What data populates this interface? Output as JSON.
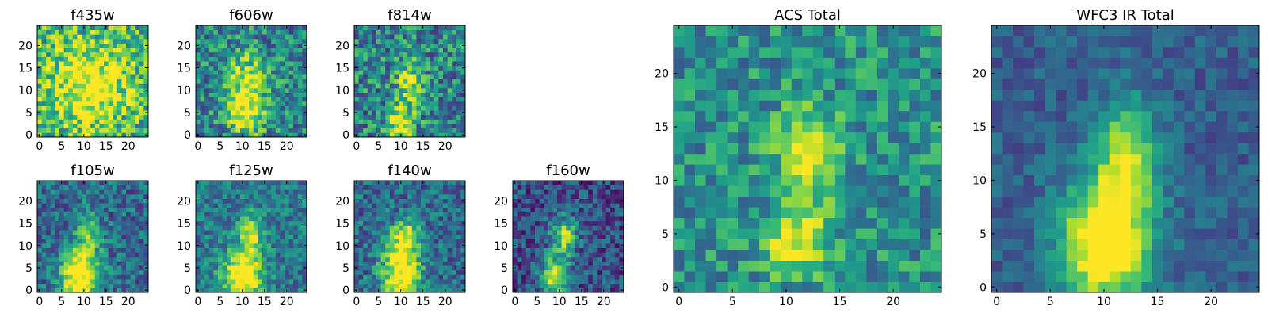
{
  "chart_data": [
    {
      "type": "heatmap",
      "title": "f435w",
      "xlim": [
        0,
        24
      ],
      "ylim": [
        0,
        24
      ],
      "xticks": [
        "0",
        "5",
        "10",
        "15",
        "20"
      ],
      "yticks": [
        "0",
        "5",
        "10",
        "15",
        "20"
      ],
      "colormap": "viridis",
      "blobs": [
        [
          11,
          11,
          0.5,
          7,
          7
        ]
      ],
      "noise": 0.32,
      "base": 0.6,
      "seed": 11
    },
    {
      "type": "heatmap",
      "title": "f606w",
      "xlim": [
        0,
        24
      ],
      "ylim": [
        0,
        24
      ],
      "xticks": [
        "0",
        "5",
        "10",
        "15",
        "20"
      ],
      "yticks": [
        "0",
        "5",
        "10",
        "15",
        "20"
      ],
      "colormap": "viridis",
      "blobs": [
        [
          11,
          11,
          0.55,
          3,
          5
        ],
        [
          11,
          4,
          0.35,
          3,
          3
        ]
      ],
      "noise": 0.28,
      "base": 0.45,
      "seed": 22
    },
    {
      "type": "heatmap",
      "title": "f814w",
      "xlim": [
        0,
        24
      ],
      "ylim": [
        0,
        24
      ],
      "xticks": [
        "0",
        "5",
        "10",
        "15",
        "20"
      ],
      "yticks": [
        "0",
        "5",
        "10",
        "15",
        "20"
      ],
      "colormap": "viridis",
      "blobs": [
        [
          10,
          3,
          0.6,
          2,
          3
        ],
        [
          12,
          12,
          0.45,
          2,
          3
        ]
      ],
      "noise": 0.3,
      "base": 0.45,
      "seed": 33
    },
    {
      "type": "heatmap",
      "title": "f105w",
      "xlim": [
        0,
        24
      ],
      "ylim": [
        0,
        24
      ],
      "xticks": [
        "0",
        "5",
        "10",
        "15",
        "20"
      ],
      "yticks": [
        "0",
        "5",
        "10",
        "15",
        "20"
      ],
      "colormap": "viridis",
      "blobs": [
        [
          9,
          3,
          0.8,
          3,
          4
        ],
        [
          11,
          12,
          0.4,
          2,
          4
        ]
      ],
      "noise": 0.22,
      "base": 0.35,
      "seed": 44
    },
    {
      "type": "heatmap",
      "title": "f125w",
      "xlim": [
        0,
        24
      ],
      "ylim": [
        0,
        24
      ],
      "xticks": [
        "0",
        "5",
        "10",
        "15",
        "20"
      ],
      "yticks": [
        "0",
        "5",
        "10",
        "15",
        "20"
      ],
      "colormap": "viridis",
      "blobs": [
        [
          10,
          3,
          0.75,
          3,
          4
        ],
        [
          12,
          12,
          0.45,
          2,
          4
        ]
      ],
      "noise": 0.2,
      "base": 0.4,
      "seed": 55
    },
    {
      "type": "heatmap",
      "title": "f140w",
      "xlim": [
        0,
        24
      ],
      "ylim": [
        0,
        24
      ],
      "xticks": [
        "0",
        "5",
        "10",
        "15",
        "20"
      ],
      "yticks": [
        "0",
        "5",
        "10",
        "15",
        "20"
      ],
      "colormap": "viridis",
      "blobs": [
        [
          10,
          4,
          0.75,
          3,
          5
        ],
        [
          11,
          12,
          0.5,
          2,
          3
        ]
      ],
      "noise": 0.22,
      "base": 0.35,
      "seed": 66
    },
    {
      "type": "heatmap",
      "title": "f160w",
      "xlim": [
        0,
        24
      ],
      "ylim": [
        0,
        24
      ],
      "xticks": [
        "0",
        "5",
        "10",
        "15",
        "20"
      ],
      "yticks": [
        "0",
        "5",
        "10",
        "15",
        "20"
      ],
      "colormap": "viridis",
      "blobs": [
        [
          9,
          3,
          0.75,
          2,
          3
        ],
        [
          11,
          12,
          0.6,
          2,
          3
        ]
      ],
      "noise": 0.22,
      "base": 0.25,
      "seed": 77
    },
    {
      "type": "heatmap",
      "title": "ACS Total",
      "xlim": [
        0,
        24
      ],
      "ylim": [
        0,
        24
      ],
      "xticks": [
        "0",
        "5",
        "10",
        "15",
        "20"
      ],
      "yticks": [
        "0",
        "5",
        "10",
        "15",
        "20"
      ],
      "colormap": "viridis",
      "blobs": [
        [
          11,
          4,
          0.5,
          2,
          2
        ],
        [
          12,
          12,
          0.55,
          2,
          3
        ]
      ],
      "noise": 0.22,
      "base": 0.5,
      "seed": 88
    },
    {
      "type": "heatmap",
      "title": "WFC3 IR Total",
      "xlim": [
        0,
        24
      ],
      "ylim": [
        0,
        24
      ],
      "xticks": [
        "0",
        "5",
        "10",
        "15",
        "20"
      ],
      "yticks": [
        "0",
        "5",
        "10",
        "15",
        "20"
      ],
      "colormap": "viridis",
      "blobs": [
        [
          10,
          4,
          0.85,
          3,
          4
        ],
        [
          12,
          12,
          0.55,
          2,
          4
        ]
      ],
      "noise": 0.12,
      "base": 0.3,
      "seed": 99
    }
  ]
}
